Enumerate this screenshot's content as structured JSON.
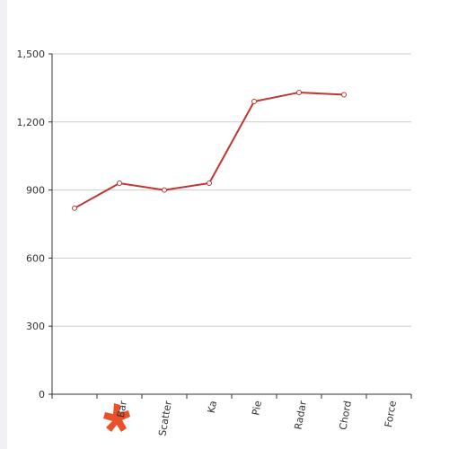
{
  "chart_data": {
    "type": "line",
    "categories": [
      null,
      "Bar",
      "Scatter",
      "Ka",
      "Pie",
      "Radar",
      "Chord",
      "Force"
    ],
    "series": [
      {
        "color": "#c23531",
        "values": [
          820,
          930,
          900,
          930,
          1290,
          1330,
          1320,
          null
        ]
      }
    ],
    "ylim": [
      0,
      1500
    ],
    "yticks": [
      0,
      300,
      600,
      900,
      {
        "value": 1200,
        "label": "1,200"
      },
      {
        "value": 1500,
        "label": "1,500"
      }
    ],
    "grid": true
  }
}
